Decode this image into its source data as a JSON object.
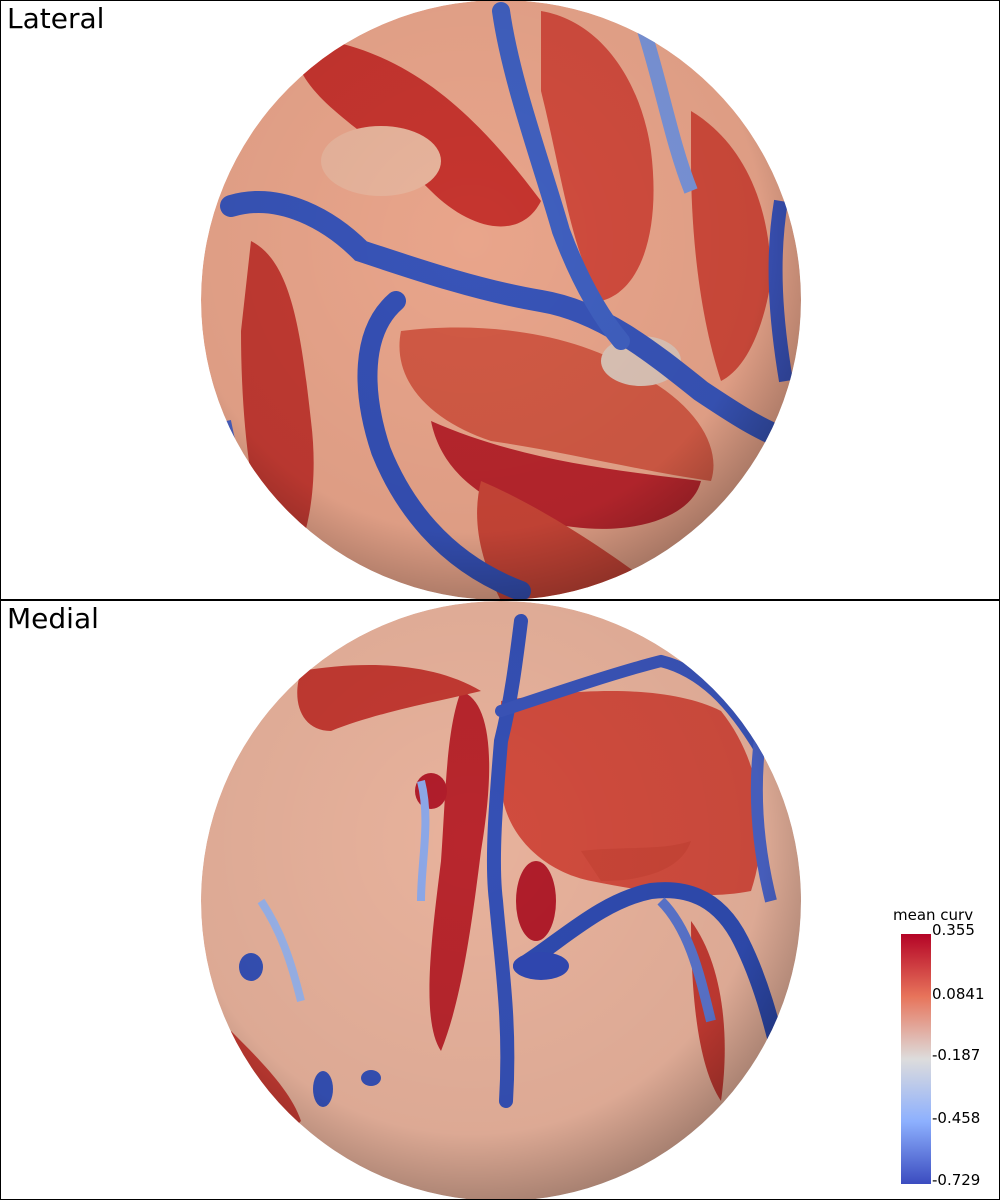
{
  "views": {
    "lateral": {
      "label": "Lateral"
    },
    "medial": {
      "label": "Medial"
    }
  },
  "colorbar": {
    "title": "mean curv",
    "ticks": [
      "0.355",
      "0.0841",
      "-0.187",
      "-0.458",
      "-0.729"
    ],
    "colors": [
      "#b40426",
      "#e7745b",
      "#dddcdc",
      "#8db0fe",
      "#3b4cc0"
    ]
  }
}
